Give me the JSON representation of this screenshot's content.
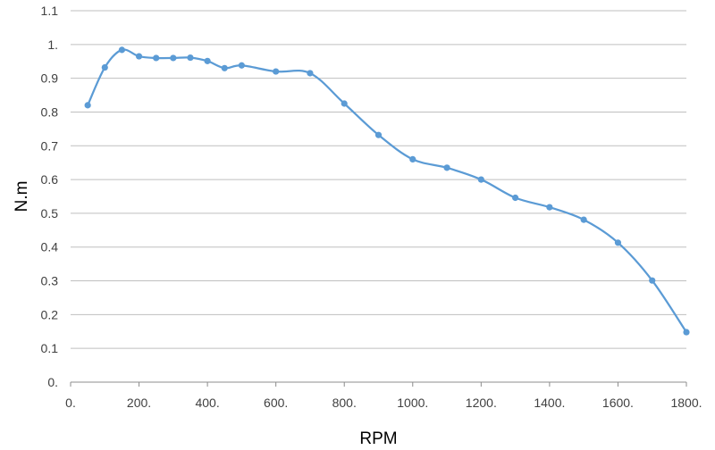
{
  "chart_data": {
    "type": "line",
    "xlabel": "RPM",
    "ylabel": "N.m",
    "xlim": [
      0,
      1800
    ],
    "ylim": [
      0,
      1.1
    ],
    "x_tick_values": [
      0,
      200,
      400,
      600,
      800,
      1000,
      1200,
      1400,
      1600,
      1800
    ],
    "x_tick_labels": [
      "0.",
      "200.",
      "400.",
      "600.",
      "800.",
      "1000.",
      "1200.",
      "1400.",
      "1600.",
      "1800."
    ],
    "y_tick_values": [
      0,
      0.1,
      0.2,
      0.3,
      0.4,
      0.5,
      0.6,
      0.7,
      0.8,
      0.9,
      1.0,
      1.1
    ],
    "y_tick_labels": [
      "0.",
      "0.1",
      "0.2",
      "0.3",
      "0.4",
      "0.5",
      "0.6",
      "0.7",
      "0.8",
      "0.9",
      "1.",
      "1.1"
    ],
    "grid": "horizontal",
    "legend": "none",
    "line_color": "#5b9bd5",
    "smooth": true,
    "series": [
      {
        "x": [
          50,
          100,
          150,
          200,
          250,
          300,
          350,
          400,
          450,
          500,
          600,
          700,
          800,
          900,
          1000,
          1100,
          1200,
          1300,
          1400,
          1500,
          1600,
          1700,
          1800
        ],
        "y": [
          0.82,
          0.932,
          0.984,
          0.965,
          0.96,
          0.96,
          0.961,
          0.951,
          0.93,
          0.938,
          0.92,
          0.915,
          0.825,
          0.732,
          0.66,
          0.635,
          0.6,
          0.546,
          0.518,
          0.481,
          0.413,
          0.301,
          0.148
        ]
      }
    ]
  }
}
